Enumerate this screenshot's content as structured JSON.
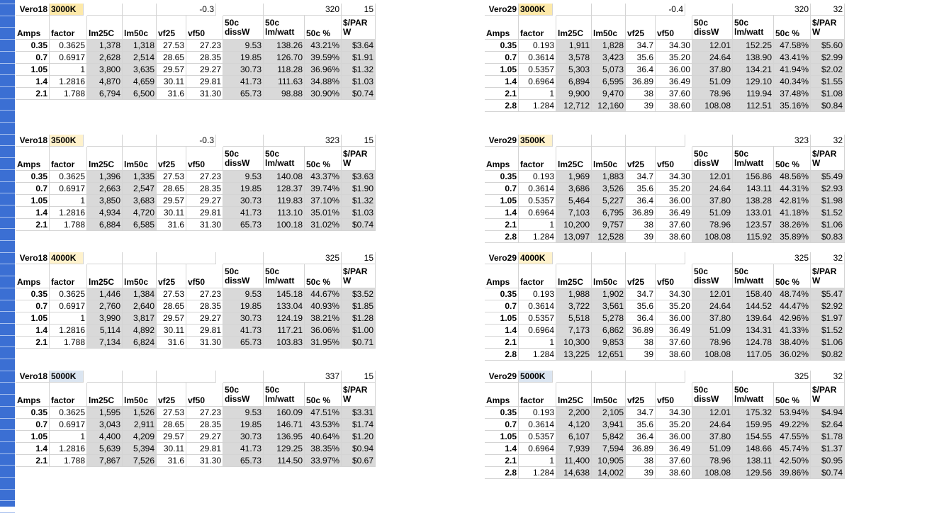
{
  "app": "Spreadsheet",
  "colors": {
    "warm_header": "#fde9a9",
    "neutral_header": "#fff2cc",
    "cool_header": "#dbe5f1",
    "gutter": "#3b6fd3",
    "shaded": "#d9d9d9"
  },
  "blocks": [
    {
      "id": "v18-3000",
      "name": "Vero18",
      "cct": "3000K",
      "vf_offset": "-0.3",
      "lm_per_w": "320",
      "dollars": "15",
      "hue": "ywarm",
      "rows": [
        [
          "0.35",
          "0.3625",
          "1,378",
          "1,318",
          "27.53",
          "27.23",
          "9.53",
          "138.26",
          "43.21%",
          "$3.64"
        ],
        [
          "0.7",
          "0.6917",
          "2,628",
          "2,514",
          "28.65",
          "28.35",
          "19.85",
          "126.70",
          "39.59%",
          "$1.91"
        ],
        [
          "1.05",
          "1",
          "3,800",
          "3,635",
          "29.57",
          "29.27",
          "30.73",
          "118.28",
          "36.96%",
          "$1.32"
        ],
        [
          "1.4",
          "1.2816",
          "4,870",
          "4,659",
          "30.11",
          "29.81",
          "41.73",
          "111.63",
          "34.88%",
          "$1.03"
        ],
        [
          "2.1",
          "1.788",
          "6,794",
          "6,500",
          "31.6",
          "31.30",
          "65.73",
          "98.88",
          "30.90%",
          "$0.74"
        ]
      ]
    },
    {
      "id": "v29-3000",
      "name": "Vero29",
      "cct": "3000K",
      "vf_offset": "-0.4",
      "lm_per_w": "320",
      "dollars": "32",
      "hue": "ywarm",
      "rows": [
        [
          "0.35",
          "0.193",
          "1,911",
          "1,828",
          "34.7",
          "34.30",
          "12.01",
          "152.25",
          "47.58%",
          "$5.60"
        ],
        [
          "0.7",
          "0.3614",
          "3,578",
          "3,423",
          "35.6",
          "35.20",
          "24.64",
          "138.90",
          "43.41%",
          "$2.99"
        ],
        [
          "1.05",
          "0.5357",
          "5,303",
          "5,073",
          "36.4",
          "36.00",
          "37.80",
          "134.21",
          "41.94%",
          "$2.02"
        ],
        [
          "1.4",
          "0.6964",
          "6,894",
          "6,595",
          "36.89",
          "36.49",
          "51.09",
          "129.10",
          "40.34%",
          "$1.55"
        ],
        [
          "2.1",
          "1",
          "9,900",
          "9,470",
          "38",
          "37.60",
          "78.96",
          "119.94",
          "37.48%",
          "$1.08"
        ],
        [
          "2.8",
          "1.284",
          "12,712",
          "12,160",
          "39",
          "38.60",
          "108.08",
          "112.51",
          "35.16%",
          "$0.84"
        ]
      ]
    },
    {
      "id": "v18-3500",
      "name": "Vero18",
      "cct": "3500K",
      "vf_offset": "-0.3",
      "lm_per_w": "323",
      "dollars": "15",
      "hue": "yneu",
      "rows": [
        [
          "0.35",
          "0.3625",
          "1,396",
          "1,335",
          "27.53",
          "27.23",
          "9.53",
          "140.08",
          "43.37%",
          "$3.63"
        ],
        [
          "0.7",
          "0.6917",
          "2,663",
          "2,547",
          "28.65",
          "28.35",
          "19.85",
          "128.37",
          "39.74%",
          "$1.90"
        ],
        [
          "1.05",
          "1",
          "3,850",
          "3,683",
          "29.57",
          "29.27",
          "30.73",
          "119.83",
          "37.10%",
          "$1.32"
        ],
        [
          "1.4",
          "1.2816",
          "4,934",
          "4,720",
          "30.11",
          "29.81",
          "41.73",
          "113.10",
          "35.01%",
          "$1.03"
        ],
        [
          "2.1",
          "1.788",
          "6,884",
          "6,585",
          "31.6",
          "31.30",
          "65.73",
          "100.18",
          "31.02%",
          "$0.74"
        ]
      ]
    },
    {
      "id": "v29-3500",
      "name": "Vero29",
      "cct": "3500K",
      "vf_offset": "",
      "lm_per_w": "323",
      "dollars": "32",
      "hue": "yneu",
      "rows": [
        [
          "0.35",
          "0.193",
          "1,969",
          "1,883",
          "34.7",
          "34.30",
          "12.01",
          "156.86",
          "48.56%",
          "$5.49"
        ],
        [
          "0.7",
          "0.3614",
          "3,686",
          "3,526",
          "35.6",
          "35.20",
          "24.64",
          "143.11",
          "44.31%",
          "$2.93"
        ],
        [
          "1.05",
          "0.5357",
          "5,464",
          "5,227",
          "36.4",
          "36.00",
          "37.80",
          "138.28",
          "42.81%",
          "$1.98"
        ],
        [
          "1.4",
          "0.6964",
          "7,103",
          "6,795",
          "36.89",
          "36.49",
          "51.09",
          "133.01",
          "41.18%",
          "$1.52"
        ],
        [
          "2.1",
          "1",
          "10,200",
          "9,757",
          "38",
          "37.60",
          "78.96",
          "123.57",
          "38.26%",
          "$1.06"
        ],
        [
          "2.8",
          "1.284",
          "13,097",
          "12,528",
          "39",
          "38.60",
          "108.08",
          "115.92",
          "35.89%",
          "$0.83"
        ]
      ]
    },
    {
      "id": "v18-4000",
      "name": "Vero18",
      "cct": "4000K",
      "vf_offset": "",
      "lm_per_w": "325",
      "dollars": "15",
      "hue": "yneu",
      "rows": [
        [
          "0.35",
          "0.3625",
          "1,446",
          "1,384",
          "27.53",
          "27.23",
          "9.53",
          "145.18",
          "44.67%",
          "$3.52"
        ],
        [
          "0.7",
          "0.6917",
          "2,760",
          "2,640",
          "28.65",
          "28.35",
          "19.85",
          "133.04",
          "40.93%",
          "$1.85"
        ],
        [
          "1.05",
          "1",
          "3,990",
          "3,817",
          "29.57",
          "29.27",
          "30.73",
          "124.19",
          "38.21%",
          "$1.28"
        ],
        [
          "1.4",
          "1.2816",
          "5,114",
          "4,892",
          "30.11",
          "29.81",
          "41.73",
          "117.21",
          "36.06%",
          "$1.00"
        ],
        [
          "2.1",
          "1.788",
          "7,134",
          "6,824",
          "31.6",
          "31.30",
          "65.73",
          "103.83",
          "31.95%",
          "$0.71"
        ]
      ]
    },
    {
      "id": "v29-4000",
      "name": "Vero29",
      "cct": "4000K",
      "vf_offset": "",
      "lm_per_w": "325",
      "dollars": "32",
      "hue": "yneu",
      "rows": [
        [
          "0.35",
          "0.193",
          "1,988",
          "1,902",
          "34.7",
          "34.30",
          "12.01",
          "158.40",
          "48.74%",
          "$5.47"
        ],
        [
          "0.7",
          "0.3614",
          "3,722",
          "3,561",
          "35.6",
          "35.20",
          "24.64",
          "144.52",
          "44.47%",
          "$2.92"
        ],
        [
          "1.05",
          "0.5357",
          "5,518",
          "5,278",
          "36.4",
          "36.00",
          "37.80",
          "139.64",
          "42.96%",
          "$1.97"
        ],
        [
          "1.4",
          "0.6964",
          "7,173",
          "6,862",
          "36.89",
          "36.49",
          "51.09",
          "134.31",
          "41.33%",
          "$1.52"
        ],
        [
          "2.1",
          "1",
          "10,300",
          "9,853",
          "38",
          "37.60",
          "78.96",
          "124.78",
          "38.40%",
          "$1.06"
        ],
        [
          "2.8",
          "1.284",
          "13,225",
          "12,651",
          "39",
          "38.60",
          "108.08",
          "117.05",
          "36.02%",
          "$0.82"
        ]
      ]
    },
    {
      "id": "v18-5000",
      "name": "Vero18",
      "cct": "5000K",
      "vf_offset": "",
      "lm_per_w": "337",
      "dollars": "15",
      "hue": "ycool",
      "rows": [
        [
          "0.35",
          "0.3625",
          "1,595",
          "1,526",
          "27.53",
          "27.23",
          "9.53",
          "160.09",
          "47.51%",
          "$3.31"
        ],
        [
          "0.7",
          "0.6917",
          "3,043",
          "2,911",
          "28.65",
          "28.35",
          "19.85",
          "146.71",
          "43.53%",
          "$1.74"
        ],
        [
          "1.05",
          "1",
          "4,400",
          "4,209",
          "29.57",
          "29.27",
          "30.73",
          "136.95",
          "40.64%",
          "$1.20"
        ],
        [
          "1.4",
          "1.2816",
          "5,639",
          "5,394",
          "30.11",
          "29.81",
          "41.73",
          "129.25",
          "38.35%",
          "$0.94"
        ],
        [
          "2.1",
          "1.788",
          "7,867",
          "7,526",
          "31.6",
          "31.30",
          "65.73",
          "114.50",
          "33.97%",
          "$0.67"
        ]
      ]
    },
    {
      "id": "v29-5000",
      "name": "Vero29",
      "cct": "5000K",
      "vf_offset": "",
      "lm_per_w": "325",
      "dollars": "32",
      "hue": "ycool",
      "rows": [
        [
          "0.35",
          "0.193",
          "2,200",
          "2,105",
          "34.7",
          "34.30",
          "12.01",
          "175.32",
          "53.94%",
          "$4.94"
        ],
        [
          "0.7",
          "0.3614",
          "4,120",
          "3,941",
          "35.6",
          "35.20",
          "24.64",
          "159.95",
          "49.22%",
          "$2.64"
        ],
        [
          "1.05",
          "0.5357",
          "6,107",
          "5,842",
          "36.4",
          "36.00",
          "37.80",
          "154.55",
          "47.55%",
          "$1.78"
        ],
        [
          "1.4",
          "0.6964",
          "7,939",
          "7,594",
          "36.89",
          "36.49",
          "51.09",
          "148.66",
          "45.74%",
          "$1.37"
        ],
        [
          "2.1",
          "1",
          "11,400",
          "10,905",
          "38",
          "37.60",
          "78.96",
          "138.11",
          "42.50%",
          "$0.95"
        ],
        [
          "2.8",
          "1.284",
          "14,638",
          "14,002",
          "39",
          "38.60",
          "108.08",
          "129.56",
          "39.86%",
          "$0.74"
        ]
      ]
    }
  ],
  "headers": {
    "amps": "Amps",
    "factor": "factor",
    "lm25": "lm25C",
    "lm50": "lm50c",
    "vf25": "vf25",
    "vf50": "vf50",
    "diss_top": "50c",
    "diss_bot": "dissW",
    "lmw_top": "50c",
    "lmw_bot": "lm/watt",
    "pct": "50c %",
    "par_top": "$/PAR",
    "par_bot": "W"
  }
}
